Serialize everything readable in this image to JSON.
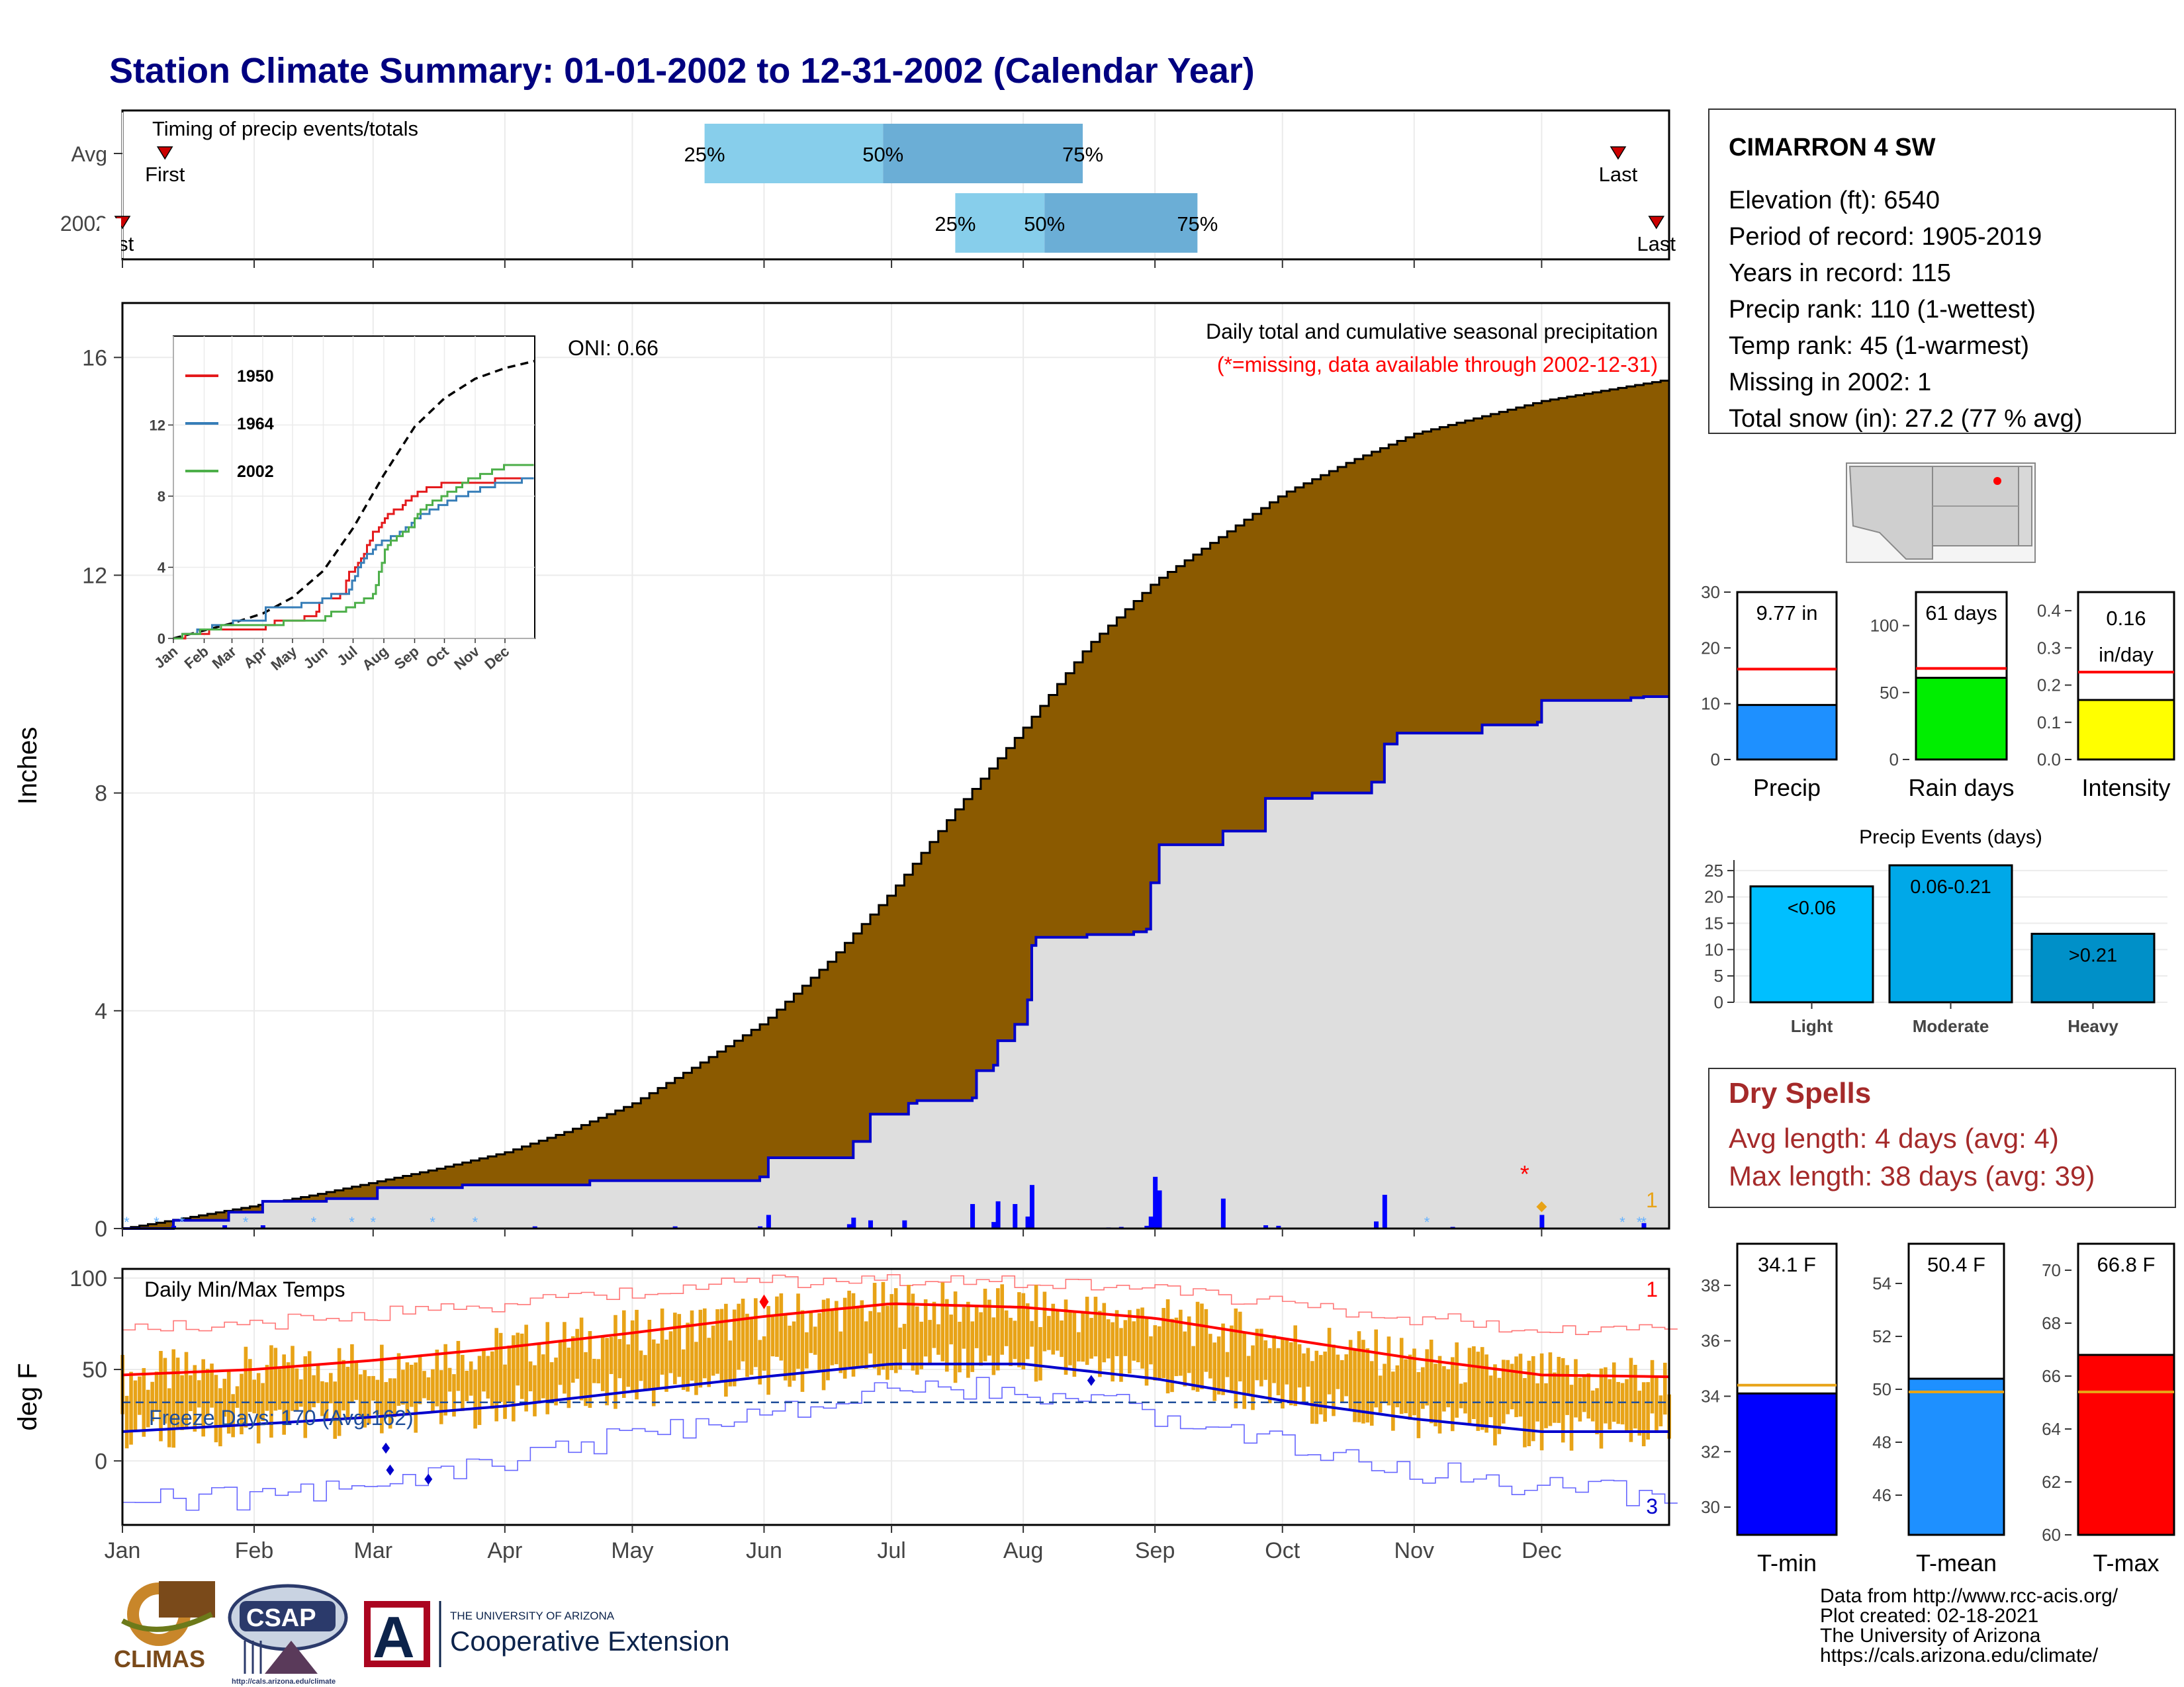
{
  "page": {
    "title": "Station Climate Summary: 01-01-2002 to 12-31-2002 (Calendar Year)",
    "months": [
      "Jan",
      "Feb",
      "Mar",
      "Apr",
      "May",
      "Jun",
      "Jul",
      "Aug",
      "Sep",
      "Oct",
      "Nov",
      "Dec"
    ],
    "footer": [
      "Data from http://www.rcc-acis.org/",
      "Plot created: 02-18-2021",
      "The University of Arizona",
      "https://cals.arizona.edu/climate/"
    ],
    "logos": {
      "climas": "CLIMAS",
      "csap": "CSAP",
      "csap_url": "http://cals.arizona.edu/climate",
      "ua_top": "THE UNIVERSITY OF ARIZONA",
      "ua_bottom": "Cooperative Extension",
      "ua_mark": "A"
    }
  },
  "colors": {
    "title": "#000080",
    "brown": "#8B5A00",
    "gray_fill": "#DEDEDE",
    "line_blue": "#0000EE",
    "box_light": "#87CEEB",
    "box_dark": "#6BAED6",
    "red": "#FF0000",
    "orange": "#E8A317",
    "dry_red": "#A52A2A"
  },
  "chart_data": [
    {
      "id": "timing",
      "type": "box",
      "title": "Timing of precip events/totals",
      "rows": [
        {
          "label": "Avg",
          "first": "Jan 11",
          "p25": "May 18",
          "p50": "Jun 29",
          "p75": "Aug 15",
          "last": "Dec 19",
          "labels": [
            "First",
            "25%",
            "50%",
            "75%",
            "Last"
          ]
        },
        {
          "label": "2002",
          "first": "Jan 1",
          "p25": "Jul 16",
          "p50": "Aug 6",
          "p75": "Sep 11",
          "last": "Dec 28",
          "labels": [
            "rst",
            "25%",
            "50%",
            "75%",
            "Last"
          ]
        }
      ]
    },
    {
      "id": "precip",
      "type": "area",
      "title": "Daily total and cumulative seasonal precipitation",
      "subtitle": "(*=missing, data available through 2002-12-31)",
      "ylabel": "Inches",
      "ylim": [
        0,
        17
      ],
      "yticks": [
        0,
        4,
        8,
        12,
        16
      ],
      "oni": "ONI: 0.66",
      "missing_count": "1",
      "avg_cumulative": [
        [
          0,
          0
        ],
        [
          15,
          0.2
        ],
        [
          31,
          0.42
        ],
        [
          45,
          0.62
        ],
        [
          59,
          0.85
        ],
        [
          74,
          1.1
        ],
        [
          90,
          1.4
        ],
        [
          105,
          1.8
        ],
        [
          120,
          2.3
        ],
        [
          135,
          3.0
        ],
        [
          151,
          3.8
        ],
        [
          166,
          4.9
        ],
        [
          181,
          6.2
        ],
        [
          196,
          7.7
        ],
        [
          212,
          9.2
        ],
        [
          227,
          10.7
        ],
        [
          243,
          11.9
        ],
        [
          258,
          12.7
        ],
        [
          273,
          13.5
        ],
        [
          289,
          14.1
        ],
        [
          304,
          14.6
        ],
        [
          319,
          14.9
        ],
        [
          334,
          15.2
        ],
        [
          349,
          15.4
        ],
        [
          364,
          15.6
        ]
      ],
      "cum_2002": [
        [
          0,
          0
        ],
        [
          12,
          0.15
        ],
        [
          25,
          0.3
        ],
        [
          33,
          0.5
        ],
        [
          48,
          0.55
        ],
        [
          60,
          0.75
        ],
        [
          80,
          0.8
        ],
        [
          110,
          0.88
        ],
        [
          150,
          0.95
        ],
        [
          152,
          1.3
        ],
        [
          172,
          1.6
        ],
        [
          176,
          2.1
        ],
        [
          184,
          2.1
        ],
        [
          185,
          2.3
        ],
        [
          187,
          2.35
        ],
        [
          200,
          2.4
        ],
        [
          201,
          2.9
        ],
        [
          205,
          3.0
        ],
        [
          206,
          3.45
        ],
        [
          210,
          3.75
        ],
        [
          213,
          4.2
        ],
        [
          214,
          5.2
        ],
        [
          215,
          5.35
        ],
        [
          227,
          5.4
        ],
        [
          238,
          5.45
        ],
        [
          241,
          5.5
        ],
        [
          242,
          6.35
        ],
        [
          244,
          7.05
        ],
        [
          259,
          7.3
        ],
        [
          269,
          7.9
        ],
        [
          280,
          8.0
        ],
        [
          294,
          8.2
        ],
        [
          297,
          8.9
        ],
        [
          300,
          9.1
        ],
        [
          320,
          9.25
        ],
        [
          333,
          9.3
        ],
        [
          334,
          9.7
        ],
        [
          355,
          9.75
        ],
        [
          358,
          9.77
        ],
        [
          364,
          9.77
        ]
      ],
      "daily_bars": [
        [
          12,
          0.05
        ],
        [
          24,
          0.06
        ],
        [
          33,
          0.06
        ],
        [
          97,
          0.04
        ],
        [
          130,
          0.04
        ],
        [
          150,
          0.04
        ],
        [
          152,
          0.25
        ],
        [
          171,
          0.08
        ],
        [
          172,
          0.2
        ],
        [
          176,
          0.15
        ],
        [
          184,
          0.15
        ],
        [
          200,
          0.45
        ],
        [
          205,
          0.12
        ],
        [
          206,
          0.5
        ],
        [
          210,
          0.45
        ],
        [
          213,
          0.22
        ],
        [
          214,
          0.8
        ],
        [
          232,
          0.02
        ],
        [
          235,
          0.03
        ],
        [
          241,
          0.05
        ],
        [
          242,
          0.22
        ],
        [
          243,
          0.95
        ],
        [
          244,
          0.7
        ],
        [
          259,
          0.55
        ],
        [
          269,
          0.06
        ],
        [
          272,
          0.05
        ],
        [
          295,
          0.13
        ],
        [
          297,
          0.62
        ],
        [
          313,
          0.03
        ],
        [
          334,
          0.25
        ],
        [
          358,
          0.1
        ]
      ],
      "snow_days": [
        1,
        8,
        14,
        29,
        45,
        54,
        59,
        73,
        83,
        307,
        353,
        357,
        358
      ]
    },
    {
      "id": "inset",
      "type": "line",
      "ylim": [
        0,
        17
      ],
      "yticks": [
        0,
        4,
        8,
        12
      ],
      "series": [
        {
          "name": "Avg",
          "color": "#000000",
          "dashed": true,
          "values": [
            [
              0,
              0
            ],
            [
              31,
              0.45
            ],
            [
              59,
              0.85
            ],
            [
              90,
              1.4
            ],
            [
              120,
              2.3
            ],
            [
              151,
              3.8
            ],
            [
              181,
              6.2
            ],
            [
              212,
              9.2
            ],
            [
              243,
              11.9
            ],
            [
              273,
              13.5
            ],
            [
              304,
              14.6
            ],
            [
              334,
              15.2
            ],
            [
              364,
              15.6
            ]
          ]
        },
        {
          "name": "1950",
          "color": "#E41A1C",
          "values": [
            [
              0,
              0
            ],
            [
              30,
              0.35
            ],
            [
              60,
              0.55
            ],
            [
              90,
              0.6
            ],
            [
              100,
              0.9
            ],
            [
              140,
              1.2
            ],
            [
              150,
              2.2
            ],
            [
              170,
              2.4
            ],
            [
              175,
              3.5
            ],
            [
              190,
              4.6
            ],
            [
              200,
              5.8
            ],
            [
              215,
              7.0
            ],
            [
              230,
              7.4
            ],
            [
              240,
              8.0
            ],
            [
              250,
              8.3
            ],
            [
              264,
              8.6
            ],
            [
              300,
              8.8
            ],
            [
              364,
              9.0
            ]
          ]
        },
        {
          "name": "1964",
          "color": "#377EB8",
          "values": [
            [
              0,
              0
            ],
            [
              35,
              0.6
            ],
            [
              60,
              0.9
            ],
            [
              90,
              1.0
            ],
            [
              92,
              1.8
            ],
            [
              140,
              1.9
            ],
            [
              160,
              2.4
            ],
            [
              175,
              2.6
            ],
            [
              190,
              4.5
            ],
            [
              210,
              5.4
            ],
            [
              230,
              6.0
            ],
            [
              245,
              6.8
            ],
            [
              260,
              7.2
            ],
            [
              280,
              7.8
            ],
            [
              320,
              8.6
            ],
            [
              364,
              9.0
            ]
          ]
        },
        {
          "name": "2002",
          "color": "#4DAF4A",
          "values": [
            [
              0,
              0
            ],
            [
              33,
              0.5
            ],
            [
              60,
              0.75
            ],
            [
              110,
              0.88
            ],
            [
              150,
              0.95
            ],
            [
              152,
              1.3
            ],
            [
              172,
              1.6
            ],
            [
              200,
              2.4
            ],
            [
              206,
              3.45
            ],
            [
              214,
              5.2
            ],
            [
              242,
              6.35
            ],
            [
              244,
              7.05
            ],
            [
              269,
              7.9
            ],
            [
              297,
              8.9
            ],
            [
              334,
              9.7
            ],
            [
              364,
              9.77
            ]
          ]
        }
      ]
    },
    {
      "id": "temps",
      "type": "bar",
      "title": "Daily Min/Max Temps",
      "ylabel": "deg F",
      "ylim": [
        -35,
        105
      ],
      "yticks": [
        0,
        50,
        100
      ],
      "freeze_label": "Freeze Days: 170 (Avg:162)",
      "freeze_line": 32,
      "record_high_count": "1",
      "record_low_count": "3",
      "avg_max": [
        [
          0,
          47
        ],
        [
          31,
          50
        ],
        [
          59,
          55
        ],
        [
          90,
          62
        ],
        [
          120,
          70
        ],
        [
          151,
          79
        ],
        [
          181,
          86
        ],
        [
          212,
          84
        ],
        [
          243,
          78
        ],
        [
          273,
          67
        ],
        [
          304,
          56
        ],
        [
          334,
          47
        ],
        [
          364,
          46
        ]
      ],
      "avg_min": [
        [
          0,
          16
        ],
        [
          31,
          20
        ],
        [
          59,
          24
        ],
        [
          90,
          30
        ],
        [
          120,
          38
        ],
        [
          151,
          46
        ],
        [
          181,
          53
        ],
        [
          212,
          53
        ],
        [
          243,
          45
        ],
        [
          273,
          33
        ],
        [
          304,
          23
        ],
        [
          334,
          16
        ],
        [
          364,
          16
        ]
      ],
      "rec_max": [
        [
          0,
          72
        ],
        [
          31,
          75
        ],
        [
          59,
          80
        ],
        [
          90,
          86
        ],
        [
          120,
          92
        ],
        [
          151,
          98
        ],
        [
          181,
          100
        ],
        [
          212,
          97
        ],
        [
          243,
          93
        ],
        [
          273,
          87
        ],
        [
          304,
          78
        ],
        [
          334,
          72
        ],
        [
          364,
          70
        ]
      ],
      "rec_min": [
        [
          0,
          -22
        ],
        [
          31,
          -20
        ],
        [
          59,
          -12
        ],
        [
          90,
          0
        ],
        [
          120,
          14
        ],
        [
          151,
          26
        ],
        [
          181,
          38
        ],
        [
          212,
          40
        ],
        [
          243,
          25
        ],
        [
          273,
          10
        ],
        [
          304,
          -5
        ],
        [
          334,
          -15
        ],
        [
          364,
          -20
        ]
      ]
    },
    {
      "id": "precip_total",
      "type": "bar",
      "ylim": [
        0,
        30
      ],
      "yticks": [
        0,
        10,
        20,
        30
      ],
      "value": 9.77,
      "avg": 16.2,
      "label": "9.77 in",
      "xlabel": "Precip",
      "color": "#1E90FF"
    },
    {
      "id": "rain_days",
      "type": "bar",
      "ylim": [
        0,
        125
      ],
      "yticks": [
        0,
        50,
        100
      ],
      "value": 61,
      "avg": 68,
      "label": "61 days",
      "xlabel": "Rain days",
      "color": "#00EE00"
    },
    {
      "id": "intensity",
      "type": "bar",
      "ylim": [
        0,
        0.45
      ],
      "yticks": [
        0.0,
        0.1,
        0.2,
        0.3,
        0.4
      ],
      "value": 0.16,
      "avg": 0.235,
      "label": "0.16",
      "label2": "in/day",
      "xlabel": "Intensity",
      "color": "#FFFF00"
    },
    {
      "id": "events",
      "type": "bar",
      "title": "Precip Events (days)",
      "ylim": [
        0,
        27
      ],
      "yticks": [
        0,
        5,
        10,
        15,
        20,
        25
      ],
      "categories": [
        "Light",
        "Moderate",
        "Heavy"
      ],
      "labels": [
        "<0.06",
        "0.06-0.21",
        ">0.21"
      ],
      "values": [
        22,
        26,
        13
      ],
      "colors": [
        "#00BFFF",
        "#00A8E8",
        "#0090C8"
      ]
    },
    {
      "id": "tmin",
      "type": "bar",
      "ylim": [
        29,
        39.5
      ],
      "yticks": [
        30,
        32,
        34,
        36,
        38
      ],
      "value": 34.1,
      "avg": 34.4,
      "label": "34.1 F",
      "xlabel": "T-min",
      "color": "#0000FF"
    },
    {
      "id": "tmean",
      "type": "bar",
      "ylim": [
        44.5,
        55.5
      ],
      "yticks": [
        46,
        48,
        50,
        52,
        54
      ],
      "value": 50.4,
      "avg": 49.9,
      "label": "50.4 F",
      "xlabel": "T-mean",
      "color": "#1E90FF"
    },
    {
      "id": "tmax",
      "type": "bar",
      "ylim": [
        60,
        71
      ],
      "yticks": [
        60,
        62,
        64,
        66,
        68,
        70
      ],
      "value": 66.8,
      "avg": 65.4,
      "label": "66.8 F",
      "xlabel": "T-max",
      "color": "#FF0000"
    }
  ],
  "station": {
    "name": "CIMARRON 4 SW",
    "lines": [
      "Elevation (ft): 6540",
      "Period of record: 1905-2019",
      "Years in record: 115",
      "Precip rank: 110 (1-wettest)",
      "Temp rank: 45 (1-warmest)",
      "Missing in 2002: 1",
      "Total snow (in): 27.2 (77 % avg)"
    ]
  },
  "dry_spells": {
    "title": "Dry Spells",
    "avg": "Avg length: 4 days (avg: 4)",
    "max": "Max length: 38 days (avg: 39)"
  }
}
